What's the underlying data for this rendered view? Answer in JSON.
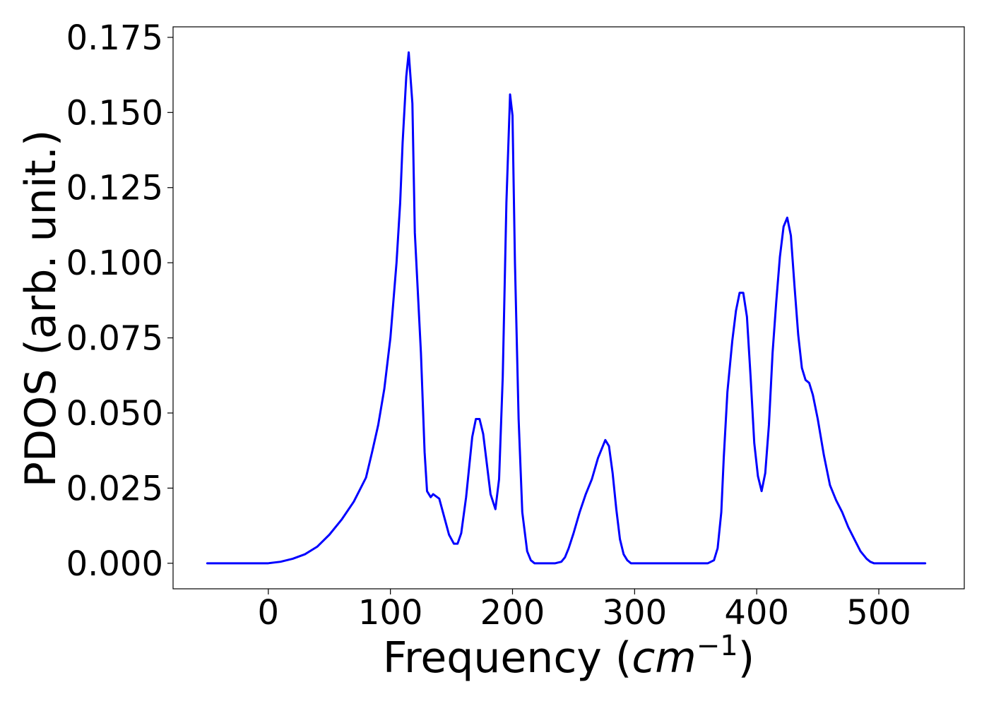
{
  "chart_data": {
    "type": "line",
    "title": "",
    "xlabel": {
      "main": "Frequency (",
      "var": "cm",
      "sup": "−1",
      "close": ")"
    },
    "ylabel": "PDOS (arb. unit.)",
    "xlim": [
      -78,
      570
    ],
    "ylim": [
      -0.0085,
      0.1785
    ],
    "xticks": [
      0,
      100,
      200,
      300,
      400,
      500
    ],
    "xtick_labels": [
      "0",
      "100",
      "200",
      "300",
      "400",
      "500"
    ],
    "yticks": [
      0,
      0.025,
      0.05,
      0.075,
      0.1,
      0.125,
      0.15,
      0.175
    ],
    "ytick_labels": [
      "0.000",
      "0.025",
      "0.050",
      "0.075",
      "0.100",
      "0.125",
      "0.150",
      "0.175"
    ],
    "grid": false,
    "legend": "none",
    "series": [
      {
        "color": "#0000ff",
        "x": [
          -50,
          -25,
          0,
          10,
          20,
          30,
          40,
          50,
          60,
          70,
          80,
          85,
          90,
          95,
          100,
          105,
          108,
          110,
          113,
          115,
          118,
          120,
          125,
          128,
          130,
          133,
          135,
          140,
          143,
          148,
          152,
          155,
          158,
          162,
          167,
          170,
          173,
          176,
          179,
          182,
          186,
          189,
          192,
          195,
          198,
          200,
          202,
          205,
          208,
          212,
          215,
          218,
          220,
          225,
          235,
          240,
          243,
          246,
          250,
          255,
          260,
          265,
          270,
          273,
          276,
          279,
          282,
          285,
          288,
          291,
          294,
          297,
          300,
          320,
          340,
          360,
          365,
          368,
          371,
          373,
          376,
          380,
          383,
          386,
          389,
          392,
          395,
          398,
          401,
          404,
          407,
          410,
          413,
          416,
          419,
          422,
          425,
          428,
          431,
          434,
          437,
          440,
          443,
          446,
          450,
          455,
          460,
          465,
          470,
          475,
          480,
          485,
          490,
          493,
          496,
          500,
          510,
          525,
          538
        ],
        "y": [
          0.0,
          0.0,
          0.0,
          0.0005,
          0.0015,
          0.003,
          0.0055,
          0.0095,
          0.0145,
          0.0205,
          0.0285,
          0.037,
          0.046,
          0.058,
          0.075,
          0.1,
          0.12,
          0.14,
          0.162,
          0.17,
          0.153,
          0.11,
          0.07,
          0.037,
          0.024,
          0.022,
          0.023,
          0.0215,
          0.017,
          0.0095,
          0.0065,
          0.0065,
          0.01,
          0.022,
          0.042,
          0.048,
          0.048,
          0.043,
          0.033,
          0.023,
          0.018,
          0.028,
          0.062,
          0.12,
          0.156,
          0.149,
          0.1,
          0.048,
          0.017,
          0.004,
          0.001,
          0.0,
          0.0,
          0.0,
          0.0,
          0.0005,
          0.002,
          0.005,
          0.01,
          0.017,
          0.023,
          0.028,
          0.035,
          0.038,
          0.041,
          0.039,
          0.03,
          0.018,
          0.008,
          0.003,
          0.001,
          0.0,
          0.0,
          0.0,
          0.0,
          0.0,
          0.001,
          0.005,
          0.017,
          0.035,
          0.057,
          0.074,
          0.084,
          0.09,
          0.09,
          0.082,
          0.062,
          0.04,
          0.029,
          0.024,
          0.03,
          0.046,
          0.07,
          0.087,
          0.102,
          0.112,
          0.115,
          0.109,
          0.092,
          0.076,
          0.065,
          0.061,
          0.06,
          0.056,
          0.048,
          0.036,
          0.026,
          0.021,
          0.017,
          0.012,
          0.008,
          0.004,
          0.0015,
          0.0005,
          0.0,
          0.0,
          0.0,
          0.0,
          0.0
        ]
      }
    ]
  }
}
